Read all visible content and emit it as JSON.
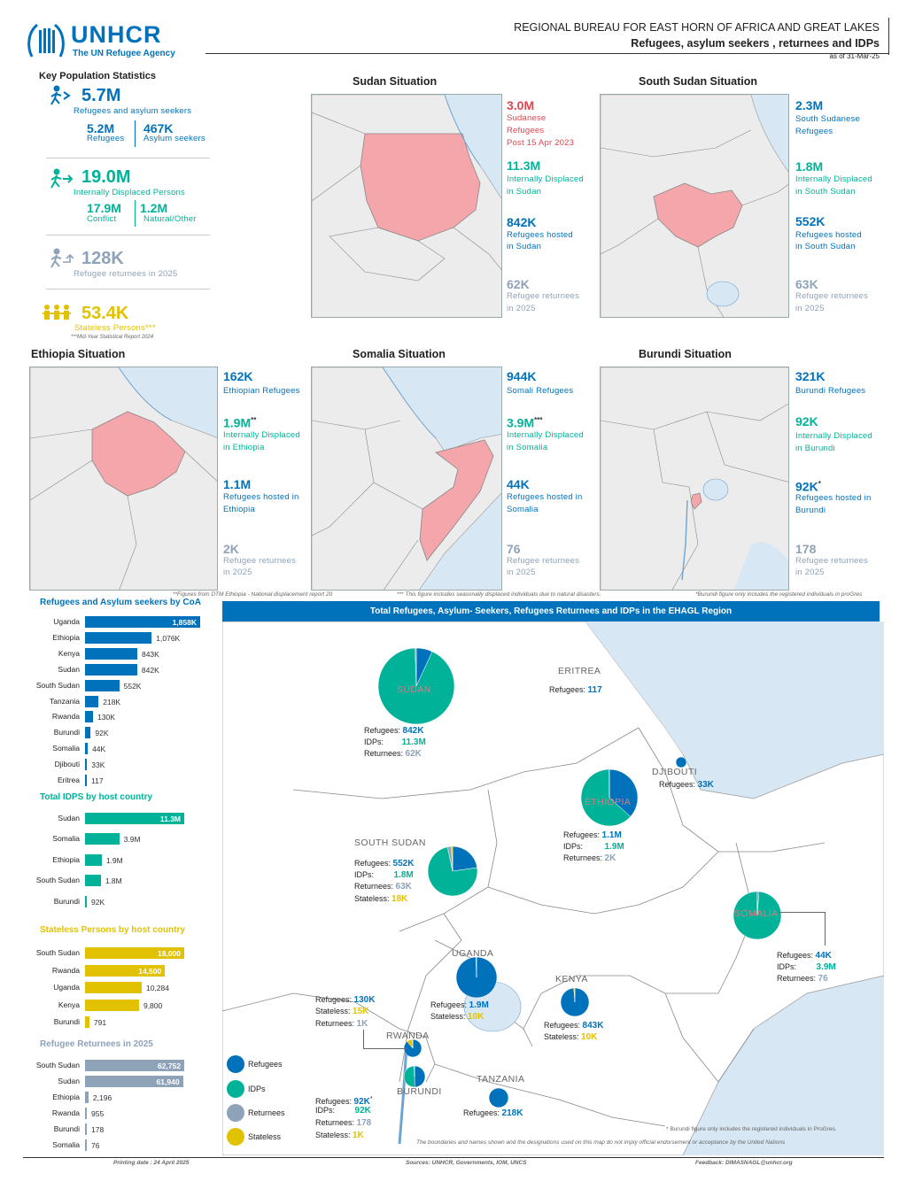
{
  "header": {
    "logo_text": "UNHCR",
    "logo_sub": "The UN Refugee Agency",
    "bureau": "REGIONAL BUREAU FOR EAST HORN OF AFRICA AND GREAT LAKES",
    "subtitle": "Refugees, asylum seekers , returnees and IDPs",
    "asof": "as of  31-Mar-25"
  },
  "key_stats": {
    "title": "Key Population Statistics",
    "total_refugees": "5.7M",
    "total_refugees_label": "Refugees and asylum seekers",
    "refugees": "5.2M",
    "refugees_label": "Refugees",
    "asylum": "467K",
    "asylum_label": "Asylum seekers",
    "idps": "19.0M",
    "idps_label": "Internally Displaced Persons",
    "conflict": "17.9M",
    "conflict_label": "Conflict",
    "natural": "1.2M",
    "natural_label": "Natural/Other",
    "returnees": "128K",
    "returnees_label": "Refugee returnees in 2025",
    "stateless": "53.4K",
    "stateless_label": "Stateless Persons***",
    "stateless_note": "***Mid-Year Statistical Report 2024"
  },
  "sudan": {
    "title": "Sudan Situation",
    "v1": "3.0M",
    "l1a": "Sudanese",
    "l1b": "Refugees",
    "l1c": "Post 15 Apr 2023",
    "v2": "11.3M",
    "l2a": "Internally Displaced",
    "l2b": "in Sudan",
    "v3": "842K",
    "l3a": "Refugees hosted",
    "l3b": "in Sudan",
    "v4": "62K",
    "l4a": "Refugee returnees",
    "l4b": "in 2025"
  },
  "ssudan": {
    "title": "South Sudan Situation",
    "v1": "2.3M",
    "l1a": "South Sudanese",
    "l1b": "Refugees",
    "v2": "1.8M",
    "l2a": "Internally Displaced",
    "l2b": "in South Sudan",
    "v3": "552K",
    "l3a": "Refugees hosted",
    "l3b": "in South Sudan",
    "v4": "63K",
    "l4a": "Refugee returnees",
    "l4b": "in 2025"
  },
  "ethiopia": {
    "title": "Ethiopia Situation",
    "v1": "162K",
    "l1a": "Ethiopian Refugees",
    "v2": "1.9M",
    "v2_mark": "**",
    "l2a": "Internally Displaced",
    "l2b": "in Ethiopia",
    "v3": "1.1M",
    "l3a": "Refugees hosted in",
    "l3b": "Ethiopia",
    "v4": "2K",
    "l4a": "Refugee returnees",
    "l4b": "in 2025",
    "footnote": "**Figures from DTM Ethiopia - National displacement report 20"
  },
  "somalia": {
    "title": "Somalia Situation",
    "v1": "944K",
    "l1a": "Somali Refugees",
    "v2": "3.9M",
    "v2_mark": "***",
    "l2a": "Internally Displaced",
    "l2b": "in Somalia",
    "v3": "44K",
    "l3a": "Refugees hosted in",
    "l3b": "Somalia",
    "v4": "76",
    "l4a": "Refugee returnees",
    "l4b": "in 2025",
    "footnote": "*** This figure includes seasonally displaced individuals due to natural disasters."
  },
  "burundi": {
    "title": "Burundi Situation",
    "v1": "321K",
    "l1a": "Burundi Refugees",
    "v2": "92K",
    "l2a": "Internally Displaced",
    "l2b": "in Burundi",
    "v3": "92K",
    "v3_mark": "*",
    "l3a": "Refugees hosted in",
    "l3b": "Burundi",
    "v4": "178",
    "l4a": "Refugee returnees",
    "l4b": "in 2025",
    "footnote": "*Burundi figure only includes the registered individuals in proGres"
  },
  "charts": {
    "refugees_title": "Refugees and Asylum seekers by CoA",
    "idps_title": "Total IDPS by host country",
    "stateless_title": "Stateless Persons by host country",
    "returnees_title": "Refugee Returnees in 2025"
  },
  "chart_data": [
    {
      "type": "bar",
      "title": "Refugees and Asylum seekers by CoA",
      "categories": [
        "Uganda",
        "Ethiopia",
        "Kenya",
        "Sudan",
        "South Sudan",
        "Tanzania",
        "Rwanda",
        "Burundi",
        "Somalia",
        "Djibouti",
        "Eritrea"
      ],
      "values": [
        1858000,
        1076000,
        843000,
        842000,
        552000,
        218000,
        130000,
        92000,
        44000,
        33000,
        117
      ],
      "labels": [
        "1,858K",
        "1,076K",
        "843K",
        "842K",
        "552K",
        "218K",
        "130K",
        "92K",
        "44K",
        "33K",
        "117"
      ],
      "color": "#0072bc"
    },
    {
      "type": "bar",
      "title": "Total IDPS by host country",
      "categories": [
        "Sudan",
        "Somalia",
        "Ethiopia",
        "South Sudan",
        "Burundi"
      ],
      "values": [
        11300000,
        3900000,
        1900000,
        1800000,
        92000
      ],
      "labels": [
        "11.3M",
        "3.9M",
        "1.9M",
        "1.8M",
        "92K"
      ],
      "color": "#00b398"
    },
    {
      "type": "bar",
      "title": "Stateless Persons by host country",
      "categories": [
        "South Sudan",
        "Rwanda",
        "Uganda",
        "Kenya",
        "Burundi"
      ],
      "values": [
        18000,
        14500,
        10284,
        9800,
        791
      ],
      "labels": [
        "18,000",
        "14,500",
        "10,284",
        "9,800",
        "791"
      ],
      "color": "#e2c200"
    },
    {
      "type": "bar",
      "title": "Refugee Returnees in 2025",
      "categories": [
        "South Sudan",
        "Sudan",
        "Ethiopia",
        "Rwanda",
        "Burundi",
        "Somalia"
      ],
      "values": [
        62752,
        61940,
        2196,
        955,
        178,
        76
      ],
      "labels": [
        "62,752",
        "61,940",
        "2,196",
        "955",
        "178",
        "76"
      ],
      "color": "#8ea2b8"
    }
  ],
  "region_map": {
    "title": "Total Refugees, Asylum- Seekers, Refugees Returnees and IDPs in the EHAGL Region",
    "countries": {
      "eritrea": "ERITREA",
      "djibouti": "DJIBOUTI",
      "south_sudan": "SOUTH SUDAN",
      "uganda": "UGANDA",
      "kenya": "KENYA",
      "rwanda": "RWANDA",
      "burundi": "BURUNDI",
      "tanzania": "TANZANIA",
      "sudan": "SUDAN",
      "ethiopia": "ETHIOPIA",
      "somalia": "SOMALIA"
    },
    "lbl": {
      "refugees": "Refugees:",
      "idps": "IDPs:",
      "returnees": "Returnees:",
      "stateless": "Stateless:"
    },
    "sudan": {
      "ref": "842K",
      "idp": "11.3M",
      "ret": "62K"
    },
    "eritrea": {
      "ref": "117"
    },
    "djibouti": {
      "ref": "33K"
    },
    "ethiopia": {
      "ref": "1.1M",
      "idp": "1.9M",
      "ret": "2K"
    },
    "south_sudan": {
      "ref": "552K",
      "idp": "1.8M",
      "ret": "63K",
      "sta": "18K"
    },
    "somalia": {
      "ref": "44K",
      "idp": "3.9M",
      "ret": "76"
    },
    "uganda": {
      "ref": "1.9M",
      "sta": "10K"
    },
    "kenya": {
      "ref": "843K",
      "sta": "10K"
    },
    "rwanda": {
      "ref": "130K",
      "sta": "15K",
      "ret": "1K"
    },
    "burundi": {
      "ref": "92K",
      "ref_mark": "*",
      "idp": "92K",
      "ret": "178",
      "sta": "1K"
    },
    "tanzania": {
      "ref": "218K"
    },
    "legend": {
      "refugees": "Refugees",
      "idps": "IDPs",
      "returnees": "Returnees",
      "stateless": "Stateless"
    },
    "note_burundi": "* Burundi figure only includes the registered individuals in ProGres.",
    "disclaimer": "The boundaries and names shown and the designations used on this map do not imply official endorsement or acceptance by the United Nations"
  },
  "footer": {
    "printing": "Printing date : 24 April 2025",
    "sources": "Sources: UNHCR, Governments, IOM, UNCS",
    "feedback": "Feedback: DIMASNAGL@unhcr.org"
  },
  "colors": {
    "refugees": "#0072bc",
    "idps": "#00b398",
    "returnees": "#8ea2b8",
    "stateless": "#e2c200",
    "highlight": "#f4a6aa",
    "sea": "#d7e7f3",
    "land": "#ececec"
  }
}
